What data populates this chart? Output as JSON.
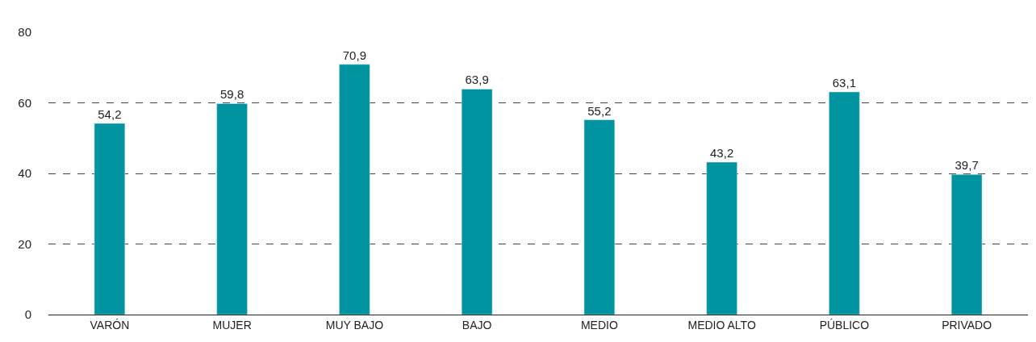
{
  "chart_data": {
    "type": "bar",
    "categories": [
      "VARÓN",
      "MUJER",
      "MUY BAJO",
      "BAJO",
      "MEDIO",
      "MEDIO ALTO",
      "PÚBLICO",
      "PRIVADO"
    ],
    "values": [
      54.2,
      59.8,
      70.9,
      63.9,
      55.2,
      43.2,
      63.1,
      39.7
    ],
    "value_labels": [
      "54,2",
      "59,8",
      "70,9",
      "63,9",
      "55,2",
      "43,2",
      "63,1",
      "39,7"
    ],
    "color": "#0093a0",
    "ylim": [
      0,
      80
    ],
    "yticks": [
      0,
      20,
      40,
      60,
      80
    ],
    "grid": "y",
    "legend": false
  }
}
